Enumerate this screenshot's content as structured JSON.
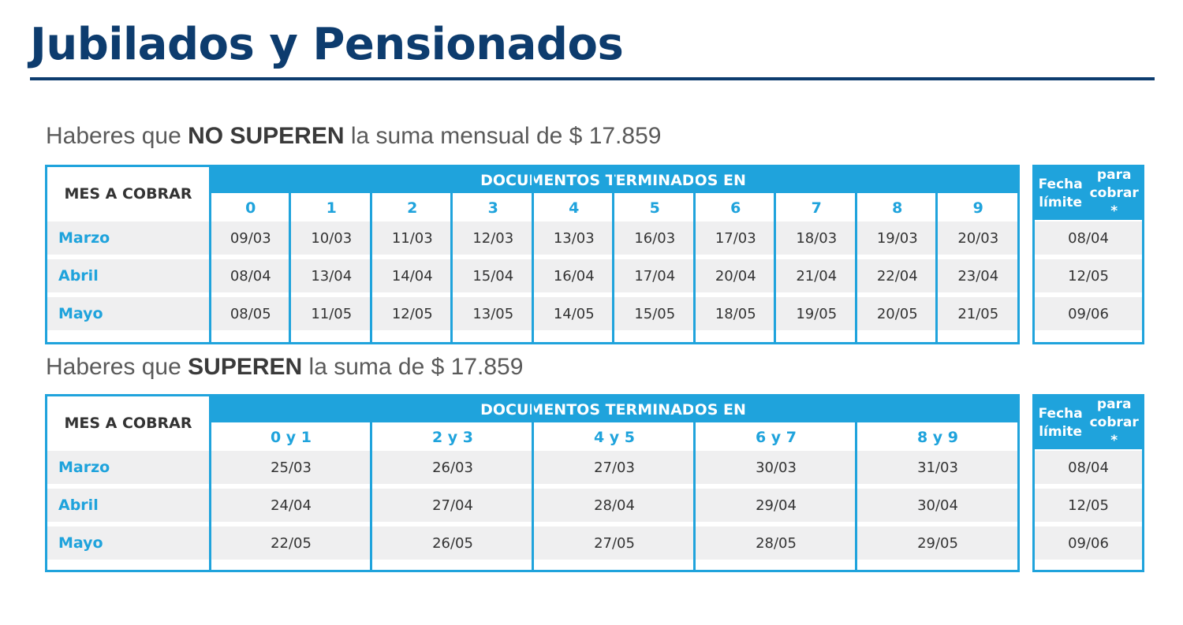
{
  "title": "Jubilados y Pensionados",
  "section_low": {
    "subtitle_pre": "Haberes que",
    "subtitle_bold": "NO SUPEREN",
    "subtitle_post": "la suma mensual de $ 17.859",
    "mes_header": "MES A COBRAR",
    "docs_header": "DOCUMENTOS TERMINADOS EN",
    "digits": [
      "0",
      "1",
      "2",
      "3",
      "4",
      "5",
      "6",
      "7",
      "8",
      "9"
    ],
    "rows": [
      {
        "month": "Marzo",
        "dates": [
          "09/03",
          "10/03",
          "11/03",
          "12/03",
          "13/03",
          "16/03",
          "17/03",
          "18/03",
          "19/03",
          "20/03"
        ],
        "deadline": "08/04"
      },
      {
        "month": "Abril",
        "dates": [
          "08/04",
          "13/04",
          "14/04",
          "15/04",
          "16/04",
          "17/04",
          "20/04",
          "21/04",
          "22/04",
          "23/04"
        ],
        "deadline": "12/05"
      },
      {
        "month": "Mayo",
        "dates": [
          "08/05",
          "11/05",
          "12/05",
          "13/05",
          "14/05",
          "15/05",
          "18/05",
          "19/05",
          "20/05",
          "21/05"
        ],
        "deadline": "09/06"
      }
    ],
    "deadline_header_1": "Fecha límite",
    "deadline_header_2": "para cobrar *"
  },
  "section_high": {
    "subtitle_pre": "Haberes que",
    "subtitle_bold": "SUPEREN",
    "subtitle_post": "la suma de $ 17.859",
    "mes_header": "MES A COBRAR",
    "docs_header": "DOCUMENTOS TERMINADOS EN",
    "digits": [
      "0 y 1",
      "2 y 3",
      "4 y 5",
      "6 y 7",
      "8 y 9"
    ],
    "rows": [
      {
        "month": "Marzo",
        "dates": [
          "25/03",
          "26/03",
          "27/03",
          "30/03",
          "31/03"
        ],
        "deadline": "08/04"
      },
      {
        "month": "Abril",
        "dates": [
          "24/04",
          "27/04",
          "28/04",
          "29/04",
          "30/04"
        ],
        "deadline": "12/05"
      },
      {
        "month": "Mayo",
        "dates": [
          "22/05",
          "26/05",
          "27/05",
          "28/05",
          "29/05"
        ],
        "deadline": "09/06"
      }
    ],
    "deadline_header_1": "Fecha límite",
    "deadline_header_2": "para cobrar *"
  },
  "colors": {
    "title": "#0d3c6e",
    "accent": "#1fa3dc",
    "band": "#efeff0"
  }
}
